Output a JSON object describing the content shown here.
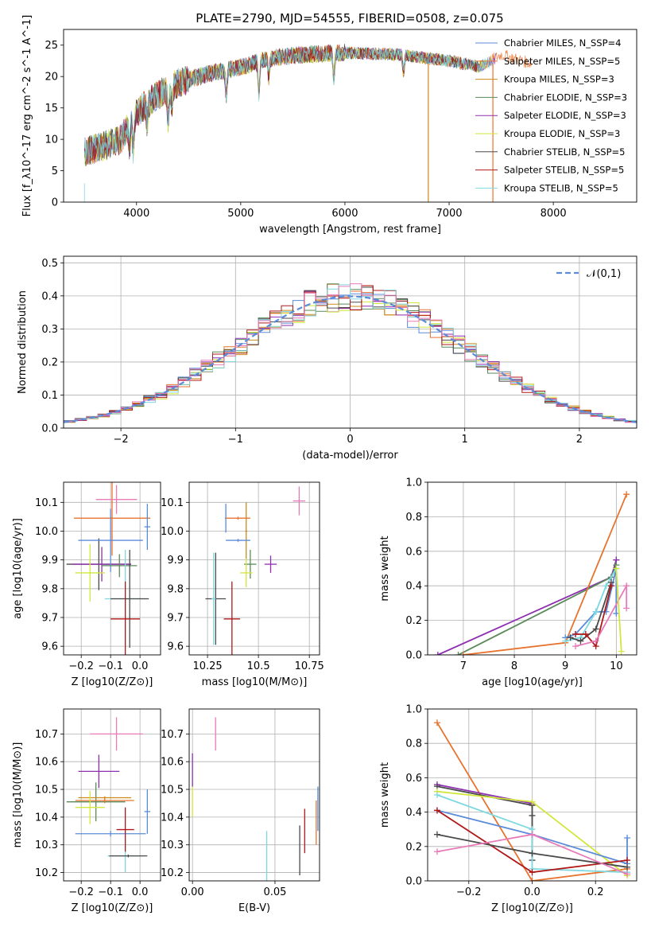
{
  "figure": {
    "title": "PLATE=2790, MJD=54555, FIBERID=0508, z=0.075"
  },
  "colors": {
    "chabrier_miles": "#5b8bd9",
    "salpeter_miles": "#e8732e",
    "kroupa_miles": "#cc8a1a",
    "chabrier_elodie": "#5a8a5a",
    "salpeter_elodie": "#8e2fb0",
    "kroupa_elodie": "#d2e63c",
    "chabrier_stelib": "#4a4a4a",
    "salpeter_stelib": "#b01818",
    "kroupa_stelib": "#7dd8e0",
    "pink": "#e87ab8",
    "normal_fit": "#5b8bd9"
  },
  "chart_data": [
    {
      "id": "spectrum",
      "type": "line",
      "xlabel": "wavelength [Angstrom, rest frame]",
      "ylabel": "Flux [f_λ10^-17 erg cm^-2 s^-1 A^-1]",
      "xlim": [
        3300,
        8800
      ],
      "ylim": [
        0,
        27.5
      ],
      "xticks": [
        4000,
        5000,
        6000,
        7000,
        8000
      ],
      "yticks": [
        0,
        5,
        10,
        15,
        20,
        25
      ],
      "legend_position": "right",
      "legend": [
        {
          "label": "Chabrier MILES, N_SSP=4",
          "color": "chabrier_miles"
        },
        {
          "label": "Salpeter MILES, N_SSP=5",
          "color": "salpeter_miles"
        },
        {
          "label": "Kroupa MILES, N_SSP=3",
          "color": "kroupa_miles"
        },
        {
          "label": "Chabrier ELODIE, N_SSP=3",
          "color": "chabrier_elodie"
        },
        {
          "label": "Salpeter ELODIE, N_SSP=3",
          "color": "salpeter_elodie"
        },
        {
          "label": "Kroupa ELODIE, N_SSP=3",
          "color": "kroupa_elodie"
        },
        {
          "label": "Chabrier STELIB, N_SSP=5",
          "color": "chabrier_stelib"
        },
        {
          "label": "Salpeter STELIB, N_SSP=5",
          "color": "salpeter_stelib"
        },
        {
          "label": "Kroupa STELIB, N_SSP=5",
          "color": "kroupa_stelib"
        }
      ],
      "continuum": [
        [
          3500,
          8
        ],
        [
          3700,
          9
        ],
        [
          3850,
          10
        ],
        [
          3950,
          13
        ],
        [
          4050,
          15
        ],
        [
          4200,
          17
        ],
        [
          4400,
          19
        ],
        [
          4700,
          20.5
        ],
        [
          5000,
          21.5
        ],
        [
          5300,
          23
        ],
        [
          5600,
          23.5
        ],
        [
          6000,
          23.8
        ],
        [
          6500,
          23.5
        ],
        [
          7000,
          22.5
        ],
        [
          7300,
          21.5
        ],
        [
          7500,
          23.5
        ],
        [
          7800,
          22
        ]
      ],
      "absorption_lines": [
        [
          3934,
          4
        ],
        [
          3969,
          5
        ],
        [
          4102,
          3
        ],
        [
          4304,
          5
        ],
        [
          4341,
          3
        ],
        [
          4861,
          4
        ],
        [
          5175,
          5
        ],
        [
          5270,
          3
        ],
        [
          5893,
          4
        ],
        [
          6563,
          3
        ]
      ]
    },
    {
      "id": "residual_histogram",
      "type": "bar",
      "xlabel": "(data-model)/error",
      "ylabel": "Normed distribution",
      "xlim": [
        -2.5,
        2.5
      ],
      "ylim": [
        0,
        0.52
      ],
      "xticks": [
        -2,
        -1,
        0,
        1,
        2
      ],
      "yticks": [
        0.0,
        0.1,
        0.2,
        0.3,
        0.4,
        0.5
      ],
      "grid": true,
      "bin_width": 0.1,
      "legend_label": "𝒩(0,1)",
      "legend_position": "top-right"
    },
    {
      "id": "age_vs_Z",
      "type": "scatter",
      "xlabel": "Z [log10(Z/Z⊙)]",
      "ylabel": "age  [log10(age/yr)]",
      "xlim": [
        -0.26,
        0.07
      ],
      "ylim": [
        9.57,
        10.17
      ],
      "xticks": [
        -0.2,
        -0.1,
        0.0
      ],
      "yticks": [
        9.6,
        9.7,
        9.8,
        9.9,
        10.0,
        10.1
      ],
      "grid": true,
      "points": [
        {
          "x": -0.14,
          "y": 9.885,
          "xerr": 0.11,
          "yerr": 0.09,
          "color": "chabrier_stelib"
        },
        {
          "x": -0.13,
          "y": 9.885,
          "xerr": 0.1,
          "yerr": 0.06,
          "color": "salpeter_elodie"
        },
        {
          "x": -0.17,
          "y": 9.855,
          "xerr": 0.05,
          "yerr": 0.1,
          "color": "kroupa_elodie"
        },
        {
          "x": -0.095,
          "y": 10.045,
          "xerr": 0.13,
          "yerr": 0.13,
          "color": "salpeter_miles"
        },
        {
          "x": -0.08,
          "y": 10.11,
          "xerr": 0.07,
          "yerr": 0.05,
          "color": "pink"
        },
        {
          "x": -0.1,
          "y": 9.968,
          "xerr": 0.11,
          "yerr": 0.11,
          "color": "chabrier_miles"
        },
        {
          "x": -0.07,
          "y": 9.88,
          "xerr": 0.06,
          "yerr": 0.04,
          "color": "chabrier_elodie"
        },
        {
          "x": -0.05,
          "y": 9.765,
          "xerr": 0.07,
          "yerr": 0.17,
          "color": "kroupa_stelib"
        },
        {
          "x": -0.035,
          "y": 9.765,
          "xerr": 0.065,
          "yerr": 0.17,
          "color": "chabrier_stelib"
        },
        {
          "x": -0.05,
          "y": 9.695,
          "xerr": 0.05,
          "yerr": 0.13,
          "color": "salpeter_stelib"
        },
        {
          "x": 0.025,
          "y": 10.015,
          "xerr": 0.01,
          "yerr": 0.08,
          "color": "chabrier_miles"
        }
      ]
    },
    {
      "id": "age_vs_mass",
      "type": "scatter",
      "xlabel": "mass [log10(M/M⊙)]",
      "ylabel": "",
      "xlim": [
        10.16,
        10.8
      ],
      "ylim": [
        9.57,
        10.17
      ],
      "xticks": [
        10.25,
        10.5,
        10.75
      ],
      "yticks": [
        9.6,
        9.7,
        9.8,
        9.9,
        10.0,
        10.1
      ],
      "grid": true,
      "points": [
        {
          "x": 10.29,
          "y": 9.765,
          "xerr": 0.05,
          "yerr": 0.16,
          "color": "chabrier_stelib"
        },
        {
          "x": 10.28,
          "y": 9.765,
          "xerr": 0.01,
          "yerr": 0.16,
          "color": "kroupa_stelib"
        },
        {
          "x": 10.37,
          "y": 9.695,
          "xerr": 0.04,
          "yerr": 0.13,
          "color": "salpeter_stelib"
        },
        {
          "x": 10.34,
          "y": 10.045,
          "xerr": 0.005,
          "yerr": 0.05,
          "color": "chabrier_miles"
        },
        {
          "x": 10.4,
          "y": 10.045,
          "xerr": 0.06,
          "yerr": 0.005,
          "color": "salpeter_miles"
        },
        {
          "x": 10.44,
          "y": 10.0,
          "xerr": 0.005,
          "yerr": 0.1,
          "color": "kroupa_miles"
        },
        {
          "x": 10.4,
          "y": 9.968,
          "xerr": 0.06,
          "yerr": 0.005,
          "color": "chabrier_miles"
        },
        {
          "x": 10.46,
          "y": 9.885,
          "xerr": 0.03,
          "yerr": 0.05,
          "color": "chabrier_elodie"
        },
        {
          "x": 10.44,
          "y": 9.855,
          "xerr": 0.03,
          "yerr": 0.05,
          "color": "kroupa_elodie"
        },
        {
          "x": 10.56,
          "y": 9.885,
          "xerr": 0.03,
          "yerr": 0.03,
          "color": "salpeter_elodie"
        },
        {
          "x": 10.7,
          "y": 10.105,
          "xerr": 0.03,
          "yerr": 0.05,
          "color": "pink"
        }
      ]
    },
    {
      "id": "mass_weight_vs_age",
      "type": "line",
      "xlabel": "age  [log10(age/yr)]",
      "ylabel": "mass weight",
      "xlim": [
        6.3,
        10.4
      ],
      "ylim": [
        0,
        1.0
      ],
      "xticks": [
        7,
        8,
        9,
        10
      ],
      "yticks": [
        0.0,
        0.2,
        0.4,
        0.6,
        0.8,
        1.0
      ],
      "grid": true,
      "series": [
        {
          "color": "salpeter_elodie",
          "x": [
            6.5,
            9.9,
            10.0,
            10.0
          ],
          "y": [
            0.0,
            0.45,
            0.55,
            0.55
          ]
        },
        {
          "color": "chabrier_elodie",
          "x": [
            6.9,
            9.9,
            10.0
          ],
          "y": [
            0.0,
            0.45,
            0.52
          ]
        },
        {
          "color": "salpeter_miles",
          "x": [
            7.0,
            9.0,
            10.2
          ],
          "y": [
            0.0,
            0.07,
            0.93
          ]
        },
        {
          "color": "chabrier_miles",
          "x": [
            9.0,
            9.2,
            9.6,
            9.8,
            10.0,
            10.0
          ],
          "y": [
            0.1,
            0.12,
            0.25,
            0.25,
            0.5,
            0.24
          ]
        },
        {
          "color": "kroupa_stelib",
          "x": [
            9.0,
            9.3,
            9.6,
            9.8,
            10.0
          ],
          "y": [
            0.08,
            0.1,
            0.25,
            0.4,
            0.5
          ]
        },
        {
          "color": "chabrier_stelib",
          "x": [
            9.1,
            9.3,
            9.6,
            9.9
          ],
          "y": [
            0.1,
            0.08,
            0.15,
            0.42
          ]
        },
        {
          "color": "salpeter_stelib",
          "x": [
            9.2,
            9.4,
            9.6,
            9.9
          ],
          "y": [
            0.12,
            0.12,
            0.05,
            0.4
          ]
        },
        {
          "color": "pink",
          "x": [
            9.2,
            9.6,
            10.2,
            10.2
          ],
          "y": [
            0.05,
            0.08,
            0.4,
            0.27
          ]
        },
        {
          "color": "kroupa_elodie",
          "x": [
            10.0,
            10.1
          ],
          "y": [
            0.5,
            0.02
          ]
        }
      ]
    },
    {
      "id": "mass_vs_Z",
      "type": "scatter",
      "xlabel": "Z [log10(Z/Z⊙)]",
      "ylabel": "mass [log10(M/M⊙)]",
      "xlim": [
        -0.26,
        0.07
      ],
      "ylim": [
        10.17,
        10.79
      ],
      "xticks": [
        -0.2,
        -0.1,
        0.0
      ],
      "yticks": [
        10.2,
        10.3,
        10.4,
        10.5,
        10.6,
        10.7
      ],
      "grid": true,
      "points": [
        {
          "x": -0.08,
          "y": 10.7,
          "xerr": 0.09,
          "yerr": 0.06,
          "color": "pink"
        },
        {
          "x": -0.14,
          "y": 10.565,
          "xerr": 0.07,
          "yerr": 0.06,
          "color": "salpeter_elodie"
        },
        {
          "x": -0.15,
          "y": 10.455,
          "xerr": 0.1,
          "yerr": 0.07,
          "color": "chabrier_elodie"
        },
        {
          "x": -0.12,
          "y": 10.46,
          "xerr": 0.1,
          "yerr": 0.01,
          "color": "salpeter_miles"
        },
        {
          "x": -0.12,
          "y": 10.47,
          "xerr": 0.09,
          "yerr": 0.005,
          "color": "kroupa_miles"
        },
        {
          "x": -0.17,
          "y": 10.435,
          "xerr": 0.05,
          "yerr": 0.06,
          "color": "kroupa_elodie"
        },
        {
          "x": -0.1,
          "y": 10.34,
          "xerr": 0.12,
          "yerr": 0.01,
          "color": "chabrier_miles"
        },
        {
          "x": -0.05,
          "y": 10.26,
          "xerr": 0.06,
          "yerr": 0.06,
          "color": "kroupa_stelib"
        },
        {
          "x": -0.04,
          "y": 10.26,
          "xerr": 0.065,
          "yerr": 0.005,
          "color": "chabrier_stelib"
        },
        {
          "x": -0.05,
          "y": 10.355,
          "xerr": 0.03,
          "yerr": 0.08,
          "color": "salpeter_stelib"
        },
        {
          "x": 0.025,
          "y": 10.42,
          "xerr": 0.01,
          "yerr": 0.08,
          "color": "chabrier_miles"
        }
      ]
    },
    {
      "id": "mass_vs_ebv",
      "type": "scatter",
      "xlabel": "E(B-V)",
      "ylabel": "",
      "xlim": [
        -0.002,
        0.077
      ],
      "ylim": [
        10.17,
        10.79
      ],
      "xticks": [
        0.0,
        0.05
      ],
      "yticks": [
        10.2,
        10.3,
        10.4,
        10.5,
        10.6,
        10.7
      ],
      "grid": true,
      "points": [
        {
          "x": 0.0,
          "y": 10.46,
          "xerr": 0,
          "yerr": 0.06,
          "color": "kroupa_elodie"
        },
        {
          "x": 0.0,
          "y": 10.57,
          "xerr": 0,
          "yerr": 0.06,
          "color": "salpeter_elodie"
        },
        {
          "x": 0.014,
          "y": 10.7,
          "xerr": 0,
          "yerr": 0.06,
          "color": "pink"
        },
        {
          "x": 0.045,
          "y": 10.26,
          "xerr": 0,
          "yerr": 0.09,
          "color": "kroupa_stelib"
        },
        {
          "x": 0.065,
          "y": 10.28,
          "xerr": 0,
          "yerr": 0.09,
          "color": "chabrier_stelib"
        },
        {
          "x": 0.068,
          "y": 10.35,
          "xerr": 0,
          "yerr": 0.08,
          "color": "salpeter_stelib"
        },
        {
          "x": 0.075,
          "y": 10.38,
          "xerr": 0,
          "yerr": 0.08,
          "color": "salpeter_miles"
        },
        {
          "x": 0.076,
          "y": 10.43,
          "xerr": 0,
          "yerr": 0.08,
          "color": "chabrier_miles"
        }
      ]
    },
    {
      "id": "mass_weight_vs_Z",
      "type": "line",
      "xlabel": "Z [log10(Z/Z⊙)]",
      "ylabel": "mass weight",
      "xlim": [
        -0.33,
        0.33
      ],
      "ylim": [
        0,
        1.0
      ],
      "xticks": [
        -0.2,
        0.0,
        0.2
      ],
      "yticks": [
        0.0,
        0.2,
        0.4,
        0.6,
        0.8,
        1.0
      ],
      "grid": true,
      "series": [
        {
          "color": "salpeter_miles",
          "x": [
            -0.3,
            0.0,
            0.3
          ],
          "y": [
            0.92,
            0.0,
            0.07
          ]
        },
        {
          "color": "salpeter_elodie",
          "x": [
            -0.3,
            0.0,
            0.0
          ],
          "y": [
            0.56,
            0.45,
            0.44
          ]
        },
        {
          "color": "chabrier_stelib",
          "x": [
            -0.3,
            0.0,
            0.0,
            0.0
          ],
          "y": [
            0.55,
            0.44,
            0.38,
            0.12
          ]
        },
        {
          "color": "kroupa_elodie",
          "x": [
            -0.3,
            0.0,
            0.3
          ],
          "y": [
            0.52,
            0.46,
            0.03
          ]
        },
        {
          "color": "kroupa_stelib",
          "x": [
            -0.3,
            0.0,
            0.0,
            0.3
          ],
          "y": [
            0.5,
            0.3,
            0.07,
            0.05
          ]
        },
        {
          "color": "chabrier_miles",
          "x": [
            -0.3,
            0.0,
            0.3,
            0.3
          ],
          "y": [
            0.41,
            0.27,
            0.1,
            0.25
          ]
        },
        {
          "color": "salpeter_stelib",
          "x": [
            -0.3,
            0.0,
            0.3
          ],
          "y": [
            0.41,
            0.05,
            0.12
          ]
        },
        {
          "color": "chabrier_stelib",
          "x": [
            -0.3,
            0.0,
            0.3
          ],
          "y": [
            0.27,
            0.16,
            0.08
          ]
        },
        {
          "color": "pink",
          "x": [
            -0.3,
            0.0,
            0.3
          ],
          "y": [
            0.17,
            0.27,
            0.04
          ]
        }
      ]
    }
  ]
}
